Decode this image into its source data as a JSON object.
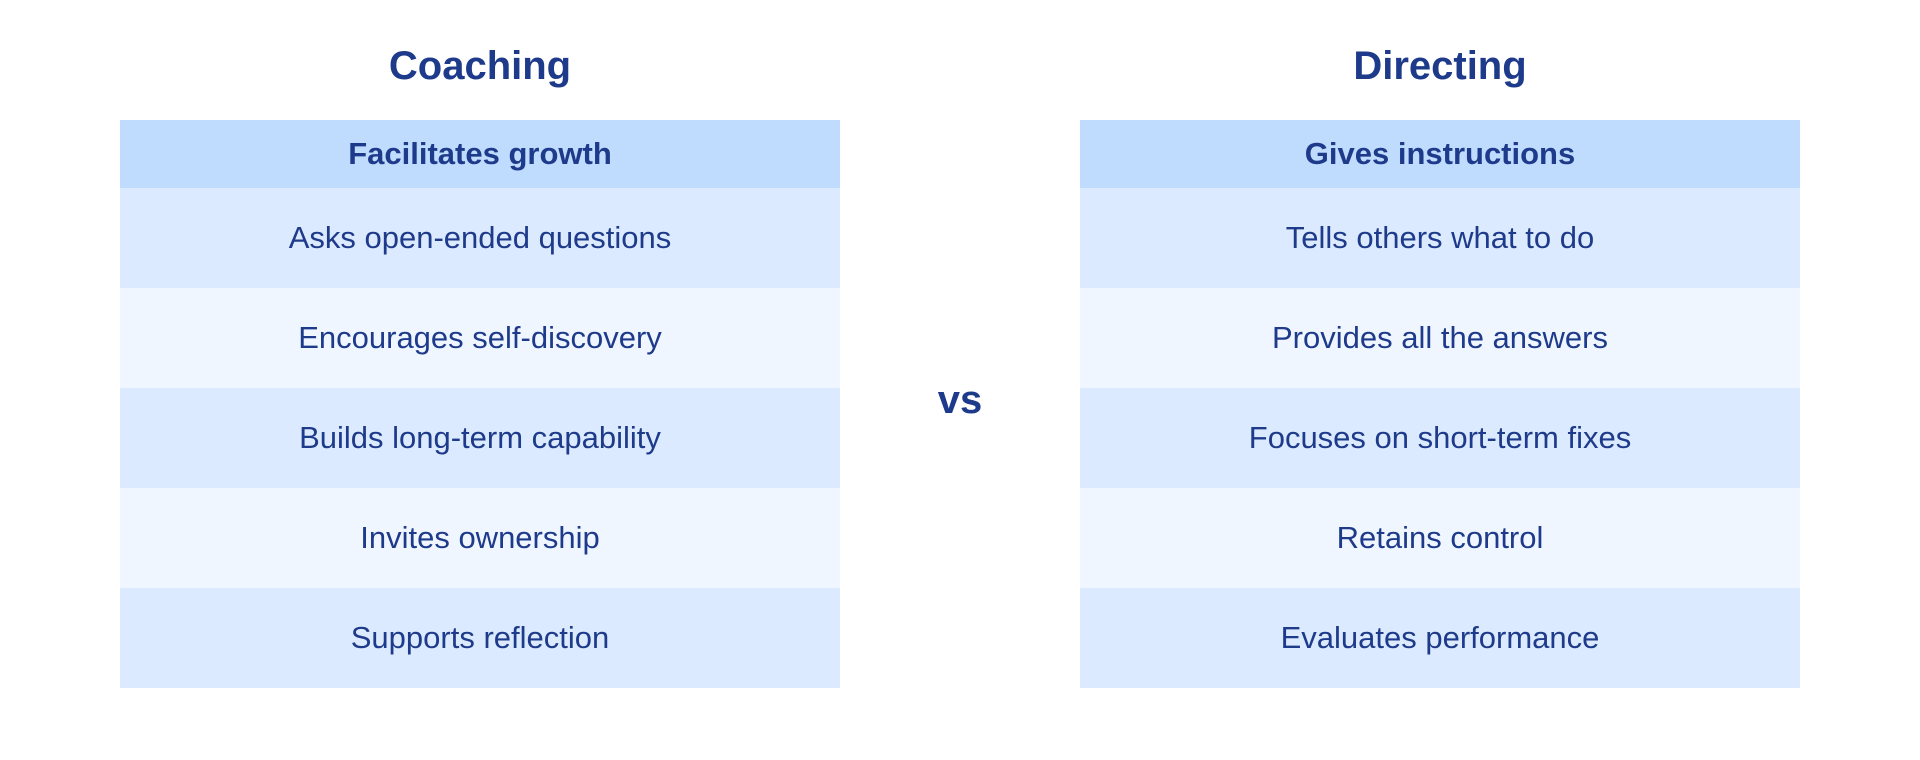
{
  "colors": {
    "text": "#1e3a8a",
    "header_bg": "#bfdbfe",
    "row_odd_bg": "#dbeafe",
    "row_even_bg": "#eff6ff",
    "background": "#ffffff"
  },
  "left": {
    "title": "Coaching",
    "header": "Facilitates growth",
    "rows": [
      "Asks open-ended questions",
      "Encourages self-discovery",
      "Builds long-term capability",
      "Invites ownership",
      "Supports reflection"
    ]
  },
  "separator": "vs",
  "right": {
    "title": "Directing",
    "header": "Gives instructions",
    "rows": [
      "Tells others what to do",
      "Provides all the answers",
      "Focuses on short-term fixes",
      "Retains control",
      "Evaluates performance"
    ]
  }
}
